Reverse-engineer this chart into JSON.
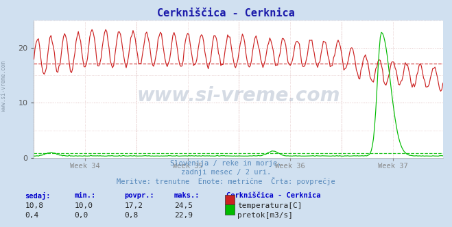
{
  "title": "Cerkniščica - Cerknica",
  "title_color": "#1a1aaa",
  "bg_color": "#d0e0f0",
  "plot_bg_color": "#ffffff",
  "grid_color": "#ddbbbb",
  "x_labels": [
    "Week 34",
    "Week 35",
    "Week 36",
    "Week 37"
  ],
  "x_label_color": "#777777",
  "y_ticks": [
    0,
    10,
    20
  ],
  "y_min": 0,
  "y_max": 25,
  "avg_temp": 17.2,
  "avg_flow": 0.8,
  "temp_color": "#cc2222",
  "flow_color": "#00bb00",
  "footer_color": "#5588bb",
  "footer_line1": "Slovenija / reke in morje.",
  "footer_line2": "zadnji mesec / 2 uri.",
  "footer_line3": "Meritve: trenutne  Enote: metrične  Črta: povprečje",
  "table_header_color": "#0000cc",
  "table_headers": [
    "sedaj:",
    "min.:",
    "povpr.:",
    "maks.:"
  ],
  "table_row1": [
    "10,8",
    "10,0",
    "17,2",
    "24,5"
  ],
  "table_row2": [
    "0,4",
    "0,0",
    "0,8",
    "22,9"
  ],
  "table_label": "Cerkniščica - Cerknica",
  "table_label1": "temperatura[C]",
  "table_label2": "pretok[m3/s]",
  "n_points": 360,
  "watermark": "www.si-vreme.com",
  "sidebar_text": "www.si-vreme.com"
}
